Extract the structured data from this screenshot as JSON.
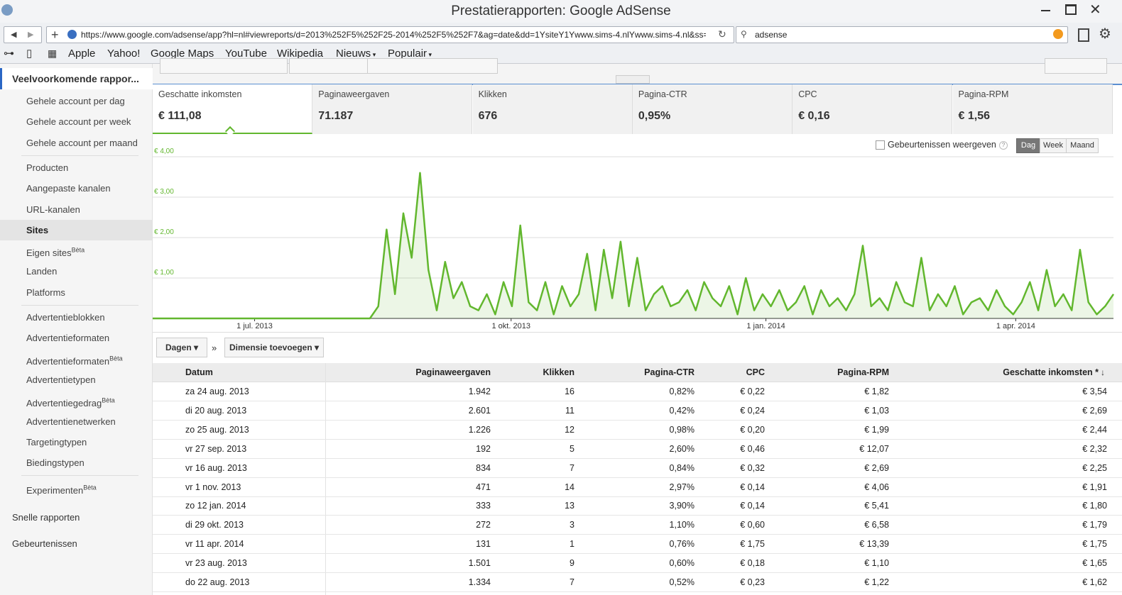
{
  "window": {
    "title": "Prestatierapporten: Google AdSense",
    "url": "https://www.google.com/adsense/app?hl=nl#viewreports/d=2013%252F5%252F25-2014%252F5%252F7&ag=date&dd=1YsiteY1Ywww.sims-4.nlYwww.sims-4.nl&ss=&",
    "search": "adsense"
  },
  "bookmarks": [
    "Apple",
    "Yahoo!",
    "Google Maps",
    "YouTube",
    "Wikipedia",
    "Nieuws",
    "Populair"
  ],
  "sidebar": {
    "heading": "Veelvoorkomende rappor...",
    "groups": [
      [
        {
          "label": "Gehele account per dag"
        },
        {
          "label": "Gehele account per week"
        },
        {
          "label": "Gehele account per maand"
        }
      ],
      [
        {
          "label": "Producten"
        },
        {
          "label": "Aangepaste kanalen"
        },
        {
          "label": "URL-kanalen"
        },
        {
          "label": "Sites",
          "active": true
        },
        {
          "label": "Eigen sites",
          "badge": "Bèta"
        },
        {
          "label": "Landen"
        },
        {
          "label": "Platforms"
        }
      ],
      [
        {
          "label": "Advertentieblokken"
        },
        {
          "label": "Advertentieformaten"
        },
        {
          "label": "Advertentieformaten",
          "badge": "Bèta"
        },
        {
          "label": "Advertentietypen"
        },
        {
          "label": "Advertentiegedrag",
          "badge": "Bèta"
        },
        {
          "label": "Advertentienetwerken"
        },
        {
          "label": "Targetingtypen"
        },
        {
          "label": "Biedingstypen"
        }
      ],
      [
        {
          "label": "Experimenten",
          "badge": "Bèta"
        }
      ]
    ],
    "footer": [
      "Snelle rapporten",
      "Gebeurtenissen"
    ]
  },
  "metrics": [
    {
      "label": "Geschatte inkomsten",
      "value": "€ 111,08",
      "active": true
    },
    {
      "label": "Paginaweergaven",
      "value": "71.187"
    },
    {
      "label": "Klikken",
      "value": "676"
    },
    {
      "label": "Pagina-CTR",
      "value": "0,95%"
    },
    {
      "label": "CPC",
      "value": "€ 0,16"
    },
    {
      "label": "Pagina-RPM",
      "value": "€ 1,56"
    }
  ],
  "chart_controls": {
    "events": "Gebeurtenissen weergeven",
    "help": "?",
    "periods": [
      "Dag",
      "Week",
      "Maand"
    ],
    "active_period": 0
  },
  "chart_data": {
    "type": "line",
    "color": "#62b72e",
    "grid": true,
    "xlim": [
      0,
      115
    ],
    "xticks": [
      {
        "value": 12.2,
        "label": "1 jul. 2013"
      },
      {
        "value": 42.9,
        "label": "1 okt. 2013"
      },
      {
        "value": 73.4,
        "label": "1 jan. 2014"
      },
      {
        "value": 103.3,
        "label": "1 apr. 2014"
      }
    ],
    "ylim": [
      0,
      4
    ],
    "yticks": [
      {
        "value": 1,
        "label": "€ 1,00"
      },
      {
        "value": 2,
        "label": "€ 2,00"
      },
      {
        "value": 3,
        "label": "€ 3,00"
      },
      {
        "value": 4,
        "label": "€ 4,00"
      }
    ],
    "values": [
      0,
      0,
      0,
      0,
      0,
      0,
      0,
      0,
      0,
      0,
      0,
      0,
      0,
      0,
      0,
      0,
      0,
      0,
      0,
      0,
      0,
      0,
      0,
      0,
      0,
      0,
      0,
      0.3,
      2.2,
      0.6,
      2.6,
      1.5,
      3.6,
      1.2,
      0.2,
      1.4,
      0.5,
      0.9,
      0.3,
      0.2,
      0.6,
      0.1,
      0.9,
      0.3,
      2.3,
      0.4,
      0.2,
      0.9,
      0.1,
      0.8,
      0.3,
      0.6,
      1.6,
      0.2,
      1.7,
      0.5,
      1.9,
      0.3,
      1.5,
      0.2,
      0.6,
      0.8,
      0.3,
      0.4,
      0.7,
      0.2,
      0.9,
      0.5,
      0.3,
      0.8,
      0.1,
      1.0,
      0.2,
      0.6,
      0.3,
      0.7,
      0.2,
      0.4,
      0.8,
      0.1,
      0.7,
      0.3,
      0.5,
      0.2,
      0.6,
      1.8,
      0.3,
      0.5,
      0.2,
      0.9,
      0.4,
      0.3,
      1.5,
      0.2,
      0.6,
      0.3,
      0.8,
      0.1,
      0.4,
      0.5,
      0.2,
      0.7,
      0.3,
      0.1,
      0.4,
      0.9,
      0.2,
      1.2,
      0.3,
      0.6,
      0.2,
      1.7,
      0.4,
      0.1,
      0.3,
      0.6
    ]
  },
  "table_controls": {
    "group": "Dagen",
    "sep": "»",
    "dimension": "Dimensie toevoegen"
  },
  "table": {
    "headers": [
      "Datum",
      "Paginaweergaven",
      "Klikken",
      "Pagina-CTR",
      "CPC",
      "Pagina-RPM",
      "Geschatte inkomsten *"
    ],
    "rows": [
      [
        "za 24 aug. 2013",
        "1.942",
        "16",
        "0,82%",
        "€ 0,22",
        "€ 1,82",
        "€ 3,54"
      ],
      [
        "di 20 aug. 2013",
        "2.601",
        "11",
        "0,42%",
        "€ 0,24",
        "€ 1,03",
        "€ 2,69"
      ],
      [
        "zo 25 aug. 2013",
        "1.226",
        "12",
        "0,98%",
        "€ 0,20",
        "€ 1,99",
        "€ 2,44"
      ],
      [
        "vr 27 sep. 2013",
        "192",
        "5",
        "2,60%",
        "€ 0,46",
        "€ 12,07",
        "€ 2,32"
      ],
      [
        "vr 16 aug. 2013",
        "834",
        "7",
        "0,84%",
        "€ 0,32",
        "€ 2,69",
        "€ 2,25"
      ],
      [
        "vr 1 nov. 2013",
        "471",
        "14",
        "2,97%",
        "€ 0,14",
        "€ 4,06",
        "€ 1,91"
      ],
      [
        "zo 12 jan. 2014",
        "333",
        "13",
        "3,90%",
        "€ 0,14",
        "€ 5,41",
        "€ 1,80"
      ],
      [
        "di 29 okt. 2013",
        "272",
        "3",
        "1,10%",
        "€ 0,60",
        "€ 6,58",
        "€ 1,79"
      ],
      [
        "vr 11 apr. 2014",
        "131",
        "1",
        "0,76%",
        "€ 1,75",
        "€ 13,39",
        "€ 1,75"
      ],
      [
        "vr 23 aug. 2013",
        "1.501",
        "9",
        "0,60%",
        "€ 0,18",
        "€ 1,10",
        "€ 1,65"
      ],
      [
        "do 22 aug. 2013",
        "1.334",
        "7",
        "0,52%",
        "€ 0,23",
        "€ 1,22",
        "€ 1,62"
      ]
    ]
  }
}
